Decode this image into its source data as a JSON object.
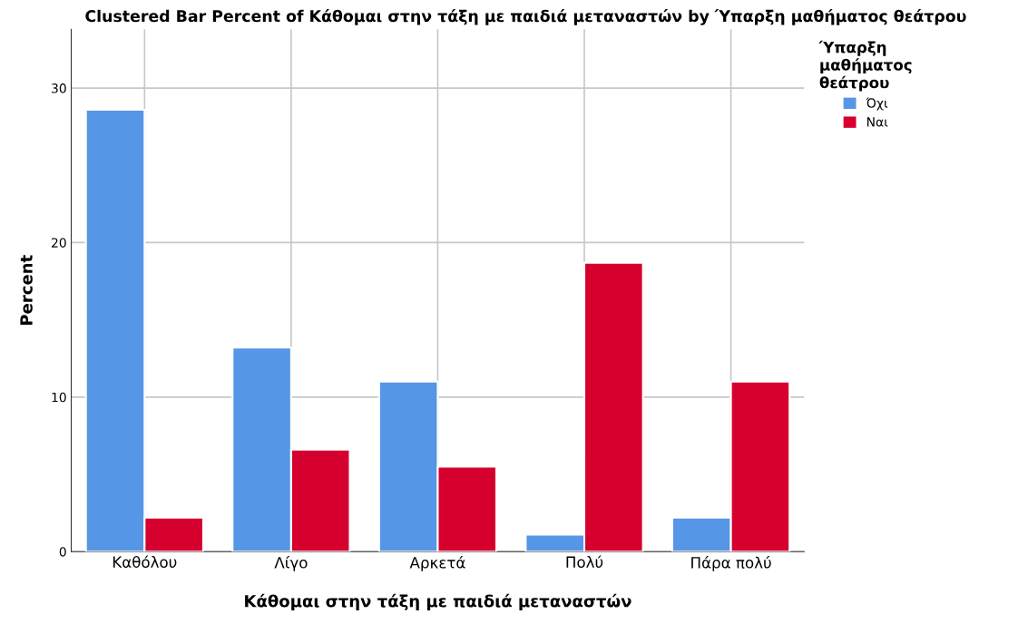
{
  "chart_data": {
    "type": "bar",
    "title": "Clustered Bar Percent of Κάθομαι στην τάξη με παιδιά μεταναστών by Ύπαρξη μαθήματος θεάτρου",
    "xlabel": "Κάθομαι στην τάξη με παιδιά μεταναστών",
    "ylabel": "Percent",
    "legend_title": "Ύπαρξη\nμαθήματος\nθεάτρου",
    "categories": [
      "Καθόλου",
      "Λίγο",
      "Αρκετά",
      "Πολύ",
      "Πάρα πολύ"
    ],
    "series": [
      {
        "name": "Όχι",
        "color": "#5596e6",
        "values": [
          28.6,
          13.2,
          11.0,
          1.1,
          2.2
        ]
      },
      {
        "name": "Ναι",
        "color": "#d6002f",
        "values": [
          2.2,
          6.6,
          5.5,
          18.7,
          11.0
        ]
      }
    ],
    "ylim": [
      0,
      33.8
    ],
    "yticks": [
      0,
      10,
      20,
      30
    ],
    "grid": true,
    "legend": "top right"
  }
}
